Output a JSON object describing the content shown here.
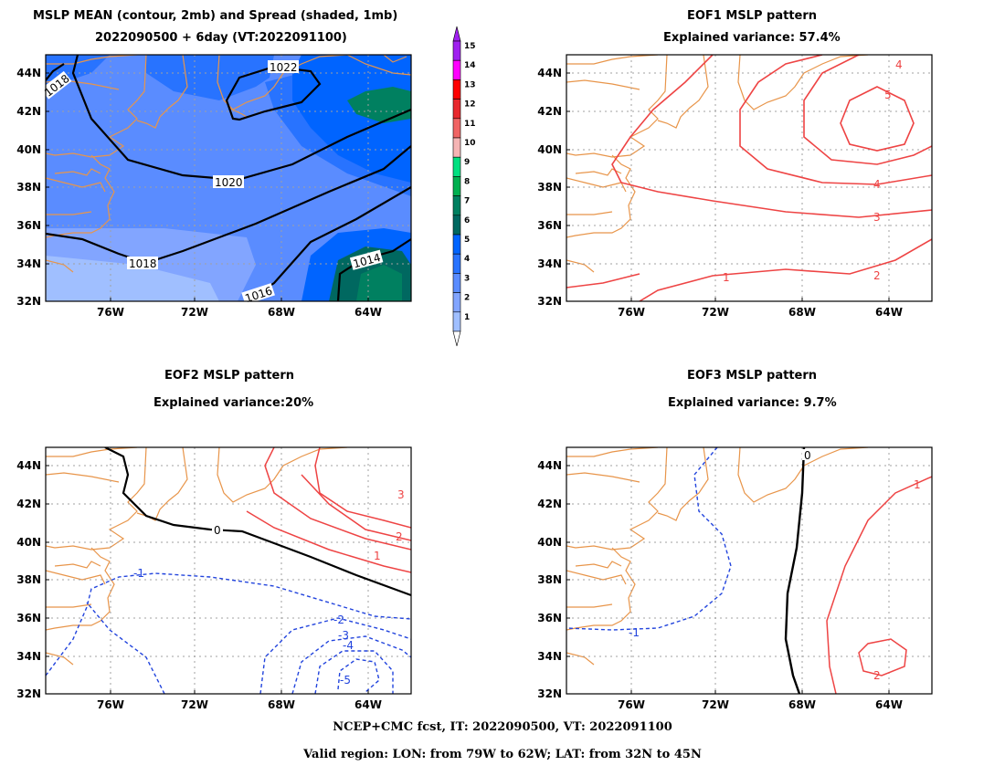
{
  "panels": {
    "mean": {
      "title_line1": "MSLP MEAN (contour, 2mb) and Spread (shaded, 1mb)",
      "title_line2": "2022090500 + 6day (VT:2022091100)",
      "contour_labels": [
        "1022",
        "1018",
        "1020",
        "1018",
        "1014",
        "1016"
      ]
    },
    "eof1": {
      "title_line1": "EOF1 MSLP pattern",
      "title_line2": "Explained variance: 57.4%",
      "contour_labels": [
        "4",
        "5",
        "4",
        "3",
        "2",
        "1"
      ]
    },
    "eof2": {
      "title_line1": "EOF2 MSLP pattern",
      "title_line2": "Explained variance:20%",
      "contour_labels": [
        "3",
        "2",
        "1",
        "0",
        "-1",
        "-2",
        "-3",
        "-4",
        "-5"
      ]
    },
    "eof3": {
      "title_line1": "EOF3 MSLP pattern",
      "title_line2": "Explained variance: 9.7%",
      "contour_labels": [
        "0",
        "1",
        "2",
        "-1"
      ]
    }
  },
  "axes": {
    "lat_labels": [
      "44N",
      "42N",
      "40N",
      "38N",
      "36N",
      "34N",
      "32N"
    ],
    "lon_labels": [
      "76W",
      "72W",
      "68W",
      "64W"
    ]
  },
  "colorbar": {
    "labels": [
      "15",
      "14",
      "13",
      "12",
      "11",
      "10",
      "9",
      "8",
      "7",
      "6",
      "5",
      "4",
      "3",
      "2",
      "1"
    ],
    "colors": [
      "#a020f0",
      "#ff00ff",
      "#ff0000",
      "#e8282d",
      "#f06464",
      "#f5b4b4",
      "#00e080",
      "#00b050",
      "#008060",
      "#006860",
      "#0064ff",
      "#2873ff",
      "#5a8cff",
      "#82a5ff",
      "#a0bfff"
    ]
  },
  "colors": {
    "coast": "#e8954a",
    "positive": "#ee3333",
    "negative": "#2244dd",
    "zero": "#000000",
    "grid": "#a0a0a0"
  },
  "footer": {
    "line1": "NCEP+CMC fcst, IT: 2022090500, VT: 2022091100",
    "line2": "Valid region: LON: from 79W to 62W; LAT: from 32N to 45N"
  }
}
